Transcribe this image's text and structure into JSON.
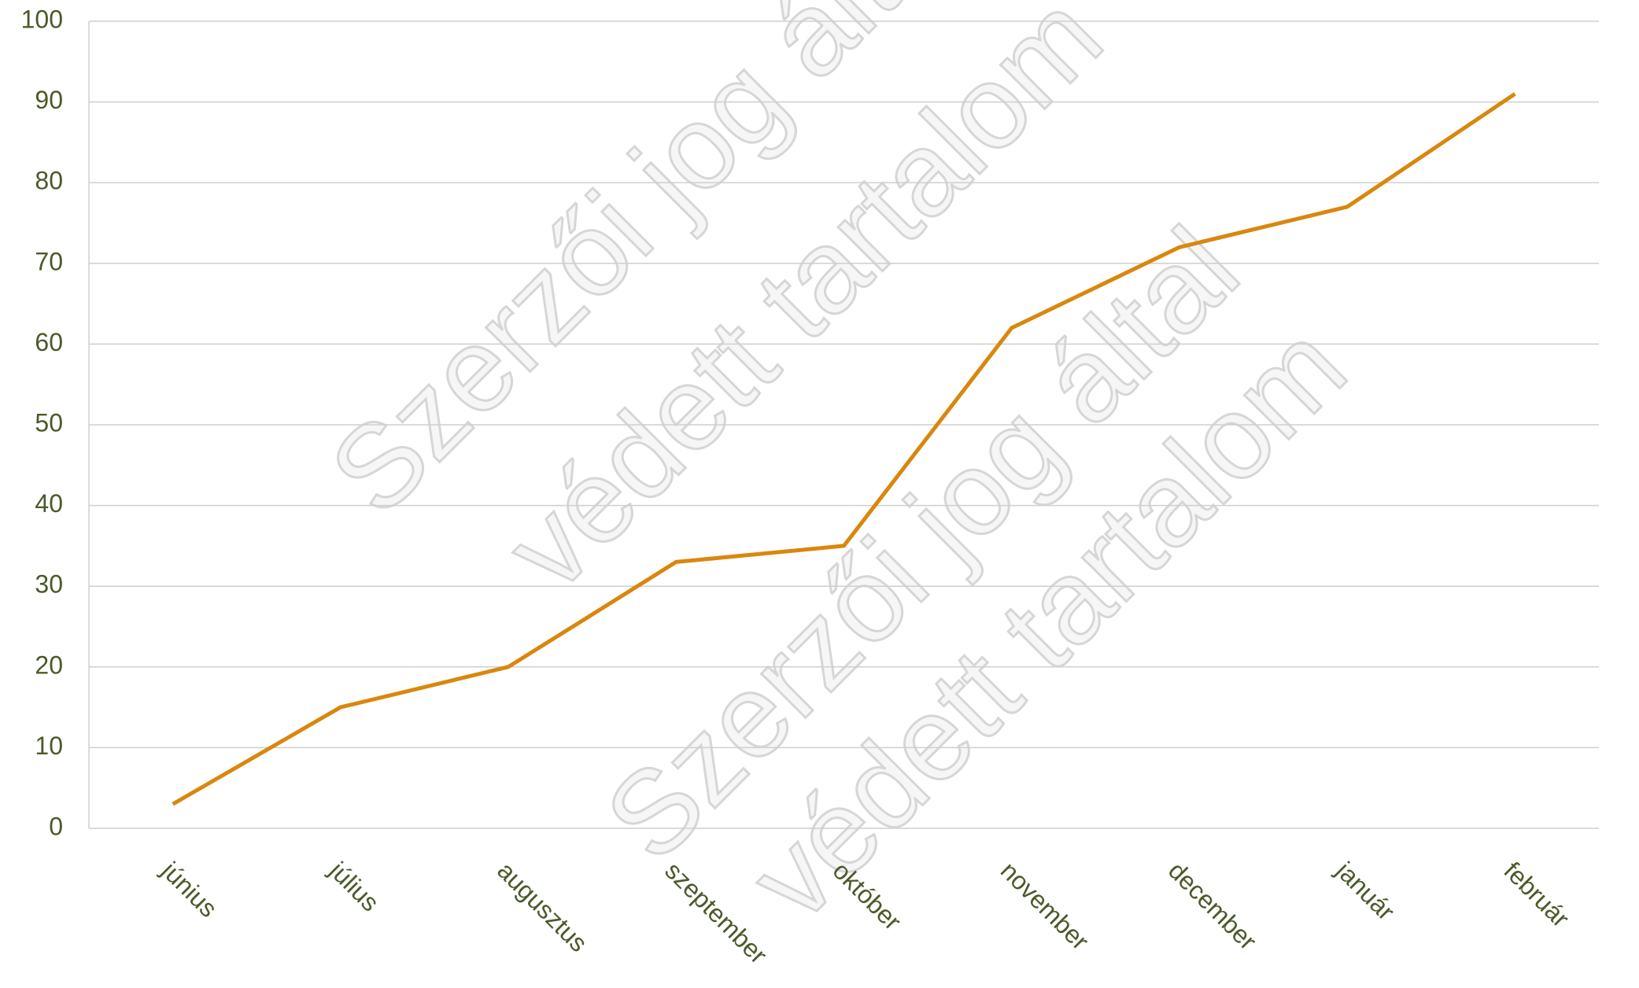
{
  "chart_data": {
    "type": "line",
    "categories": [
      "június",
      "július",
      "augusztus",
      "szeptember",
      "október",
      "november",
      "december",
      "január",
      "február"
    ],
    "series": [
      {
        "name": "",
        "color": "#d9870e",
        "values": [
          3,
          15,
          20,
          33,
          35,
          62,
          72,
          77,
          91
        ]
      }
    ],
    "ylim": [
      0,
      100
    ],
    "yticks": [
      0,
      10,
      20,
      30,
      40,
      50,
      60,
      70,
      80,
      90,
      100
    ],
    "grid": true,
    "watermark": [
      "Szerzői jog által",
      "védett tartalom"
    ]
  }
}
